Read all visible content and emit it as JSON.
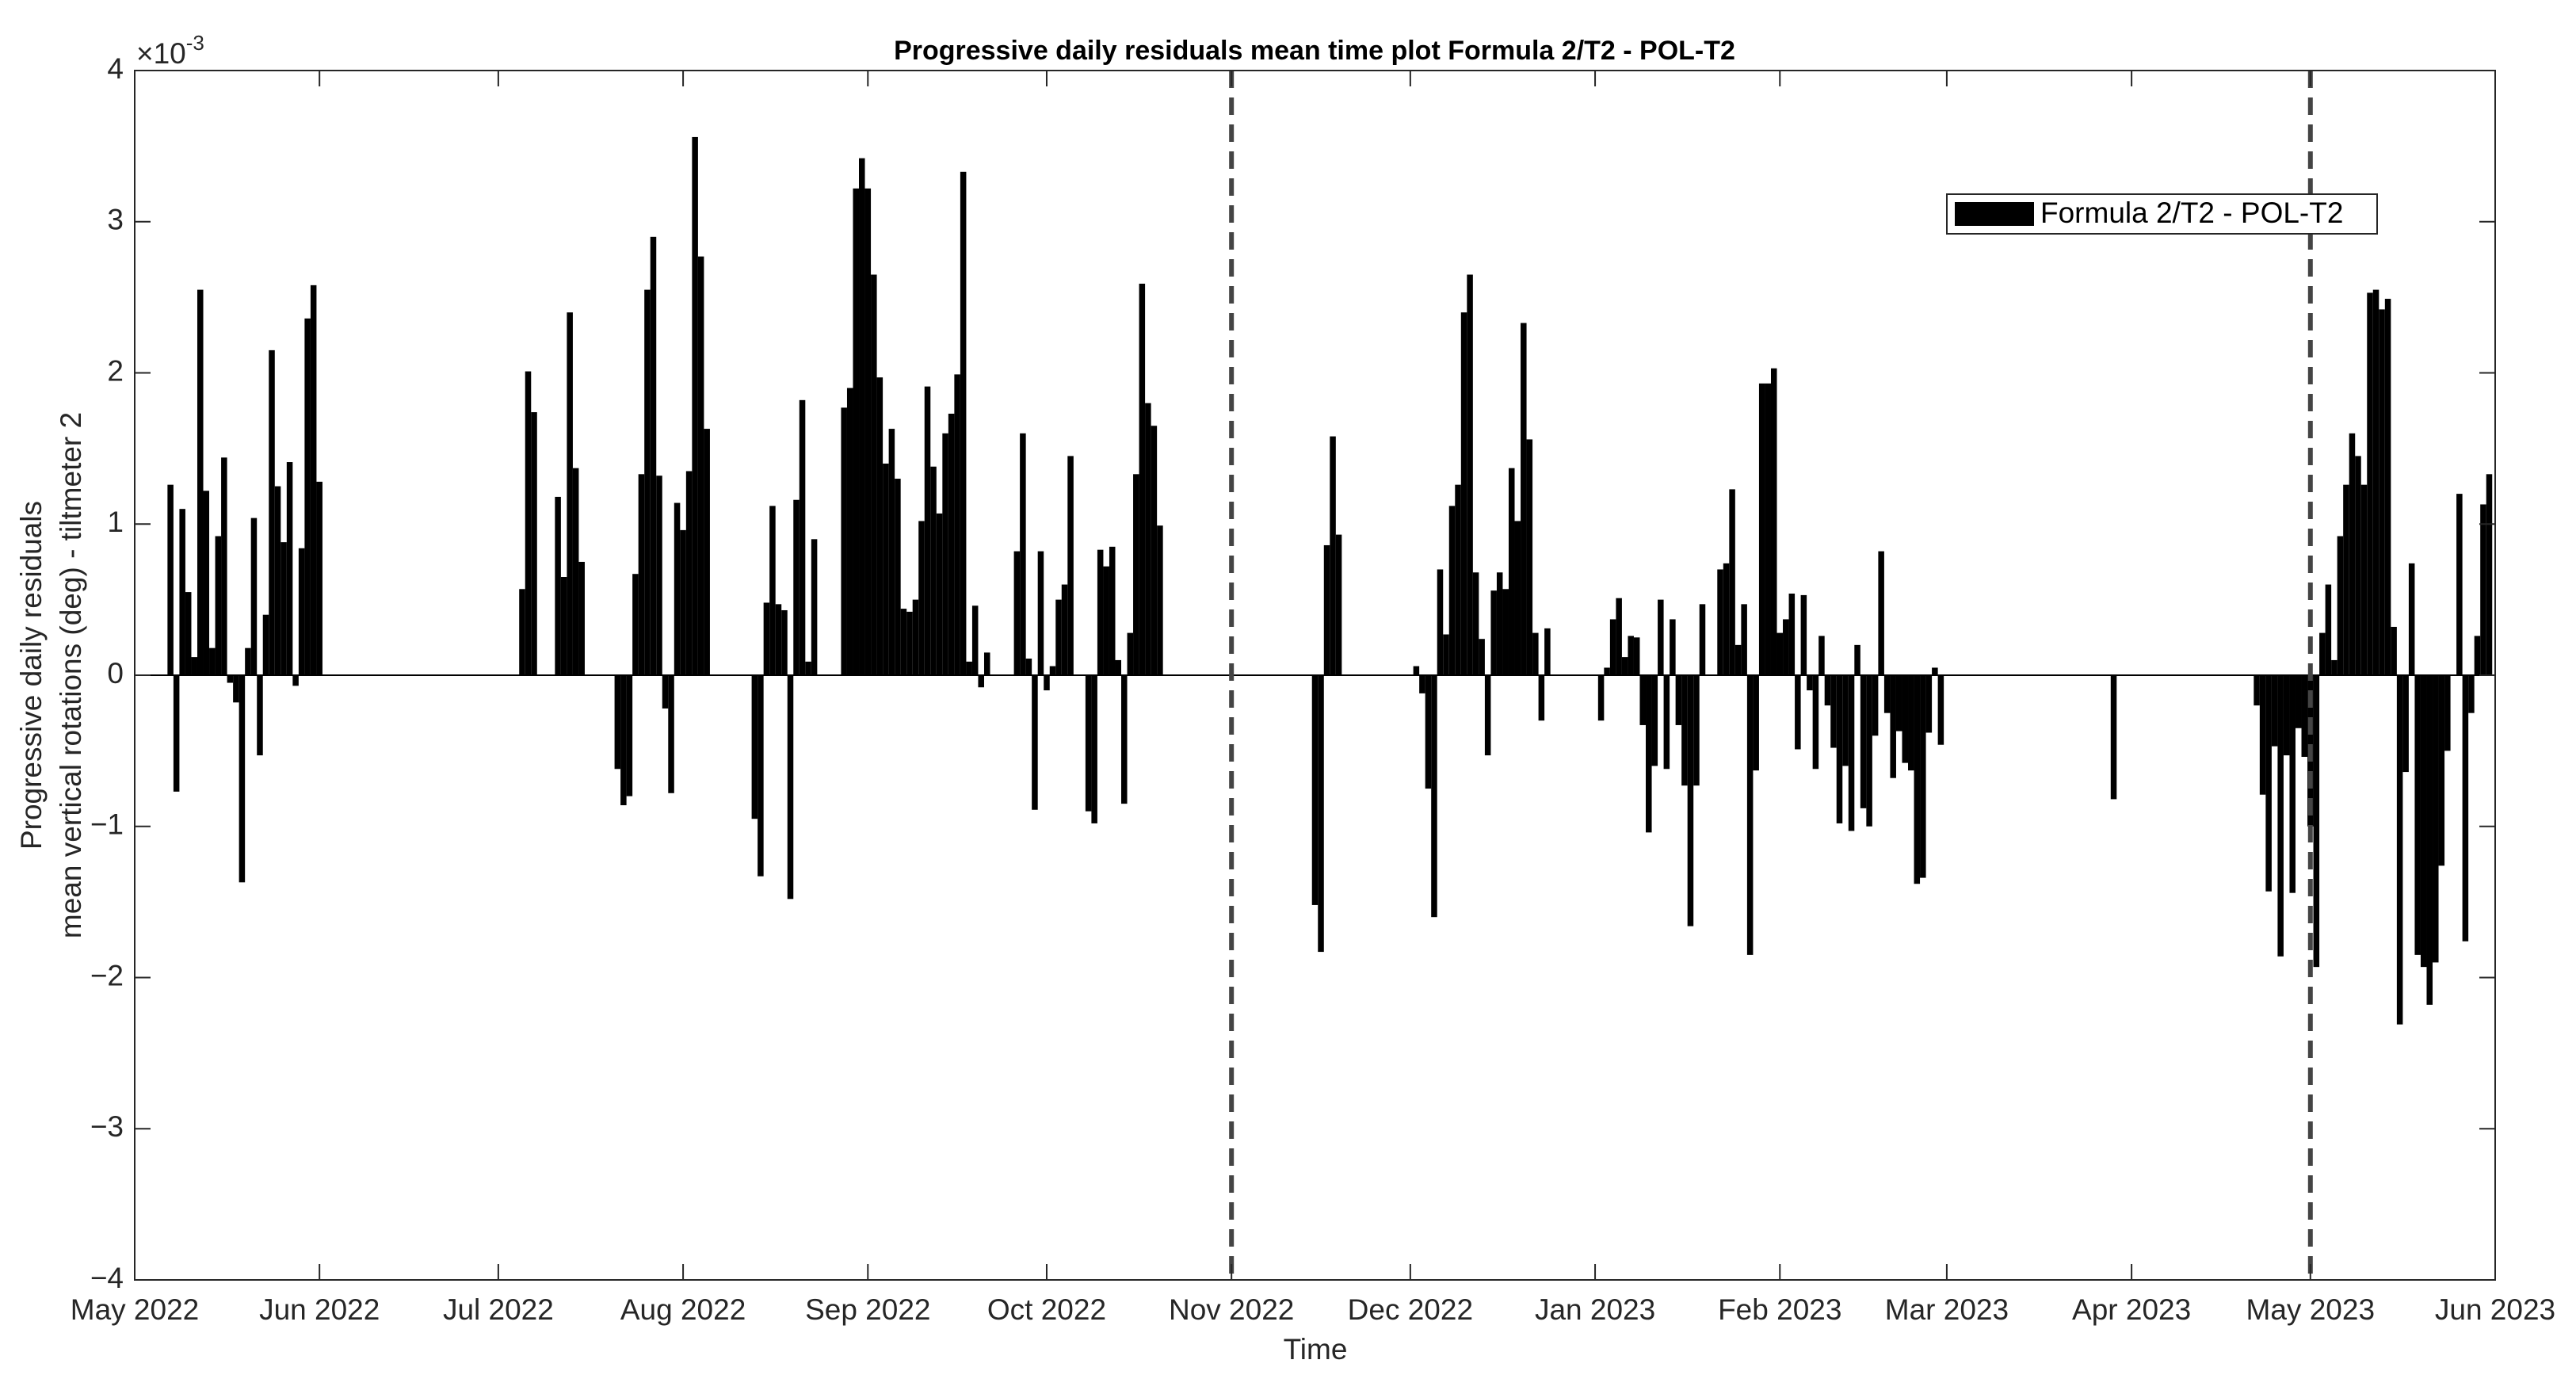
{
  "chart_data": {
    "type": "bar",
    "title": "Progressive daily residuals mean time plot Formula 2/T2 - POL-T2",
    "xlabel": "Time",
    "ylabel": [
      "Progressive daily residuals",
      "mean vertical rotations (deg) - tiltmeter 2"
    ],
    "y_multiplier": {
      "base": "×10",
      "exponent": "-3"
    },
    "xlim": [
      0,
      396
    ],
    "xticks": [
      {
        "value": 0,
        "label": "May 2022"
      },
      {
        "value": 31,
        "label": "Jun 2022"
      },
      {
        "value": 61,
        "label": "Jul 2022"
      },
      {
        "value": 92,
        "label": "Aug 2022"
      },
      {
        "value": 123,
        "label": "Sep 2022"
      },
      {
        "value": 153,
        "label": "Oct 2022"
      },
      {
        "value": 184,
        "label": "Nov 2022"
      },
      {
        "value": 214,
        "label": "Dec 2022"
      },
      {
        "value": 245,
        "label": "Jan 2023"
      },
      {
        "value": 276,
        "label": "Feb 2023"
      },
      {
        "value": 304,
        "label": "Mar 2023"
      },
      {
        "value": 335,
        "label": "Apr 2023"
      },
      {
        "value": 365,
        "label": "May 2023"
      },
      {
        "value": 396,
        "label": "Jun 2023"
      }
    ],
    "ylim": [
      -4,
      4
    ],
    "yticks": [
      {
        "value": -4,
        "label": "−4"
      },
      {
        "value": -3,
        "label": "−3"
      },
      {
        "value": -2,
        "label": "−2"
      },
      {
        "value": -1,
        "label": "−1"
      },
      0,
      1,
      2,
      3,
      4
    ],
    "grid": false,
    "legend": "upper right",
    "vlines": [
      184,
      365
    ],
    "series": [
      {
        "name": "Formula 2/T2 - POL-T2",
        "color": "#000000",
        "x": [
          6,
          7,
          8,
          9,
          10,
          11,
          12,
          13,
          14,
          15,
          16,
          17,
          18,
          19,
          20,
          21,
          22,
          23,
          24,
          25,
          26,
          27,
          28,
          29,
          30,
          31,
          65,
          66,
          67,
          71,
          72,
          73,
          74,
          75,
          81,
          82,
          83,
          84,
          85,
          86,
          87,
          88,
          89,
          90,
          91,
          92,
          93,
          94,
          95,
          96,
          104,
          105,
          106,
          107,
          108,
          109,
          110,
          111,
          112,
          113,
          114,
          119,
          120,
          121,
          122,
          123,
          124,
          125,
          126,
          127,
          128,
          129,
          130,
          131,
          132,
          133,
          134,
          135,
          136,
          137,
          138,
          139,
          140,
          141,
          142,
          143,
          148,
          149,
          150,
          151,
          152,
          153,
          154,
          155,
          156,
          157,
          160,
          161,
          162,
          163,
          164,
          165,
          166,
          167,
          168,
          169,
          170,
          171,
          172,
          198,
          199,
          200,
          201,
          202,
          215,
          216,
          217,
          218,
          219,
          220,
          221,
          222,
          223,
          224,
          225,
          226,
          227,
          228,
          229,
          230,
          231,
          232,
          233,
          234,
          235,
          236,
          237,
          246,
          247,
          248,
          249,
          250,
          251,
          252,
          253,
          254,
          255,
          256,
          257,
          258,
          259,
          260,
          261,
          262,
          263,
          266,
          267,
          268,
          269,
          270,
          271,
          272,
          273,
          274,
          275,
          276,
          277,
          278,
          279,
          280,
          281,
          282,
          283,
          284,
          285,
          286,
          287,
          288,
          289,
          290,
          291,
          292,
          293,
          294,
          295,
          296,
          297,
          298,
          299,
          300,
          301,
          302,
          303,
          332,
          356,
          357,
          358,
          359,
          360,
          361,
          362,
          363,
          364,
          365,
          366,
          367,
          368,
          369,
          370,
          371,
          372,
          373,
          374,
          375,
          376,
          377,
          378,
          379,
          380,
          381,
          382,
          383,
          384,
          385,
          386,
          387,
          388,
          390,
          391,
          392,
          393,
          394,
          395
        ],
        "values": [
          1.26,
          -0.77,
          1.1,
          0.55,
          0.12,
          2.55,
          1.22,
          0.18,
          0.92,
          1.44,
          -0.05,
          -0.18,
          -1.37,
          0.18,
          1.04,
          -0.53,
          0.4,
          2.15,
          1.25,
          0.88,
          1.41,
          -0.07,
          0.84,
          2.36,
          2.58,
          1.28,
          0.57,
          2.01,
          1.74,
          1.18,
          0.65,
          2.4,
          1.37,
          0.75,
          -0.62,
          -0.86,
          -0.8,
          0.67,
          1.33,
          2.55,
          2.9,
          1.32,
          -0.22,
          -0.78,
          1.14,
          0.96,
          1.35,
          3.56,
          2.77,
          1.63,
          -0.95,
          -1.33,
          0.48,
          1.12,
          0.47,
          0.43,
          -1.48,
          1.16,
          1.82,
          0.09,
          0.9,
          1.77,
          1.9,
          3.22,
          3.42,
          3.22,
          2.65,
          1.97,
          1.4,
          1.63,
          1.3,
          0.44,
          0.42,
          0.5,
          1.02,
          1.91,
          1.38,
          1.07,
          1.6,
          1.73,
          1.99,
          3.33,
          0.09,
          0.46,
          -0.08,
          0.15,
          0.82,
          1.6,
          0.11,
          -0.89,
          0.82,
          -0.1,
          0.06,
          0.5,
          0.6,
          1.45,
          -0.9,
          -0.98,
          0.83,
          0.72,
          0.85,
          0.1,
          -0.85,
          0.28,
          1.33,
          2.59,
          1.8,
          1.65,
          0.99,
          -1.52,
          -1.83,
          0.86,
          1.58,
          0.93,
          0.06,
          -0.12,
          -0.75,
          -1.6,
          0.7,
          0.27,
          1.12,
          1.26,
          2.4,
          2.65,
          0.68,
          0.24,
          -0.53,
          0.56,
          0.68,
          0.57,
          1.37,
          1.02,
          2.33,
          1.56,
          0.28,
          -0.3,
          0.31,
          -0.3,
          0.05,
          0.37,
          0.51,
          0.12,
          0.26,
          0.25,
          -0.33,
          -1.04,
          -0.6,
          0.5,
          -0.62,
          0.37,
          -0.33,
          -0.73,
          -1.66,
          -0.73,
          0.47,
          0.7,
          0.74,
          1.23,
          0.2,
          0.47,
          -1.85,
          -0.63,
          1.93,
          1.93,
          2.03,
          0.28,
          0.37,
          0.54,
          -0.49,
          0.53,
          -0.1,
          -0.62,
          0.26,
          -0.2,
          -0.48,
          -0.98,
          -0.6,
          -1.03,
          0.2,
          -0.88,
          -1.0,
          -0.4,
          0.82,
          -0.25,
          -0.68,
          -0.37,
          -0.58,
          -0.63,
          -1.38,
          -1.34,
          -0.38,
          0.05,
          -0.46,
          -0.82,
          -0.2,
          -0.79,
          -1.43,
          -0.47,
          -1.86,
          -0.53,
          -1.44,
          -0.35,
          -0.54,
          -1.0,
          -1.93,
          0.28,
          0.6,
          0.1,
          0.92,
          1.26,
          1.6,
          1.45,
          1.26,
          2.53,
          2.55,
          2.42,
          2.49,
          0.32,
          -2.31,
          -0.64,
          0.74,
          -1.85,
          -1.93,
          -2.18,
          -1.9,
          -1.26,
          -0.5,
          1.2,
          -1.76,
          -0.25,
          0.26,
          1.13,
          1.33
        ]
      }
    ]
  }
}
